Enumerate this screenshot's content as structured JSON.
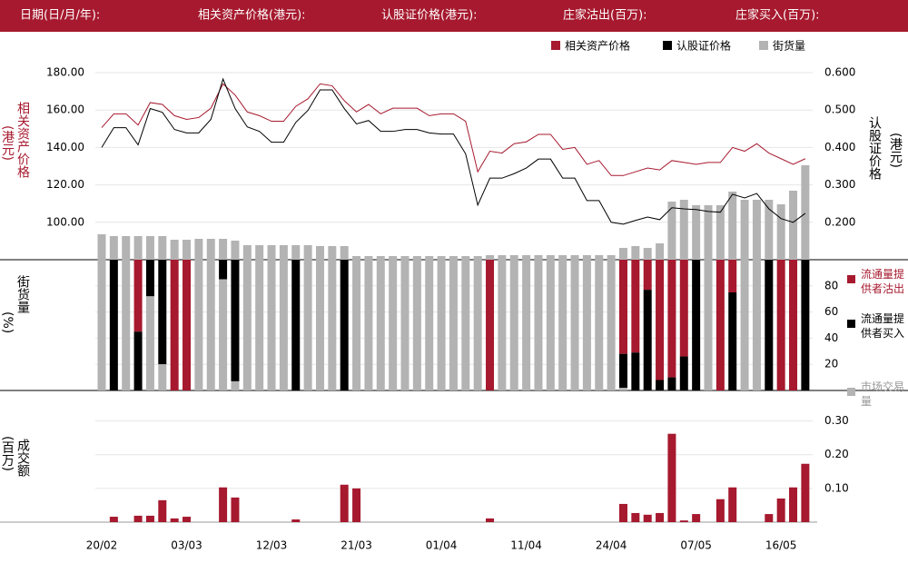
{
  "header": {
    "labels": [
      "日期(日/月/年):",
      "相关资产价格(港元):",
      "认股证价格(港元):",
      "庄家沽出(百万):",
      "庄家买入(百万):"
    ]
  },
  "chart_data": [
    {
      "type": "line",
      "ylabel": "相关资产价格",
      "ylabel_unit": "(港元)",
      "y2label": "认股证价格",
      "y2label_unit": "(港元)",
      "ylim": [
        80,
        180
      ],
      "yticks": [
        {
          "value": 100,
          "label": "100.00"
        },
        {
          "value": 120,
          "label": "120.00"
        },
        {
          "value": 140,
          "label": "140.00"
        },
        {
          "value": 160,
          "label": "160.00"
        },
        {
          "value": 180,
          "label": "180.00"
        }
      ],
      "y2lim": [
        0.1,
        0.6
      ],
      "y2ticks": [
        {
          "value": 0.2,
          "label": "0.200"
        },
        {
          "value": 0.3,
          "label": "0.300"
        },
        {
          "value": 0.4,
          "label": "0.400"
        },
        {
          "value": 0.5,
          "label": "0.500"
        },
        {
          "value": 0.6,
          "label": "0.600"
        }
      ],
      "y3lim": [
        0,
        206
      ],
      "grid": true,
      "series": [
        {
          "name": "相关资产价格",
          "color": "#a6192e",
          "values": [
            150.6,
            158,
            158,
            152,
            164,
            163,
            157,
            155,
            156,
            161,
            174,
            168,
            159,
            157,
            154,
            154,
            162,
            166,
            174,
            173,
            165,
            159,
            163,
            158,
            161,
            161,
            161,
            157,
            158,
            158,
            154,
            127,
            138,
            137,
            142,
            143,
            147,
            147,
            139,
            140,
            131,
            133,
            125,
            125,
            127,
            129,
            128,
            133,
            132,
            131,
            132,
            132,
            140,
            138,
            142,
            137,
            134,
            131,
            134
          ]
        },
        {
          "name": "认股证价格",
          "color": "#000000",
          "axis": "y2",
          "values": [
            0.4,
            0.453,
            0.453,
            0.407,
            0.504,
            0.494,
            0.448,
            0.439,
            0.439,
            0.475,
            0.583,
            0.504,
            0.455,
            0.443,
            0.414,
            0.414,
            0.467,
            0.499,
            0.554,
            0.554,
            0.504,
            0.463,
            0.472,
            0.443,
            0.443,
            0.448,
            0.448,
            0.439,
            0.436,
            0.436,
            0.383,
            0.246,
            0.318,
            0.318,
            0.33,
            0.345,
            0.369,
            0.369,
            0.318,
            0.318,
            0.258,
            0.258,
            0.2,
            0.195,
            0.205,
            0.214,
            0.207,
            0.239,
            0.236,
            0.234,
            0.229,
            0.227,
            0.275,
            0.265,
            0.277,
            0.236,
            0.21,
            0.2,
            0.224
          ]
        },
        {
          "name": "街货量",
          "color": "#b3b3b3",
          "axis": "y3",
          "values": [
            28,
            26,
            26,
            26,
            26,
            26,
            22,
            22,
            23,
            23,
            23,
            21,
            16,
            16,
            16,
            16,
            16,
            16,
            15,
            15,
            15,
            4,
            4,
            4,
            4,
            4,
            4,
            4,
            4,
            4,
            4,
            4,
            5,
            5,
            5,
            5,
            5,
            5,
            5,
            5,
            5,
            5,
            5,
            13,
            15,
            13,
            18,
            64,
            66,
            60,
            60,
            60,
            75,
            66,
            66,
            66,
            61,
            76,
            104
          ]
        }
      ]
    },
    {
      "type": "stacked_bar",
      "ylabel": "街货量",
      "ylabel_unit": "(%)",
      "ylim": [
        0,
        100
      ],
      "yticks": [
        20,
        40,
        60,
        80
      ],
      "grid": true,
      "series": [
        {
          "name": "流通量提供者沽出",
          "color": "#a6192e",
          "values": [
            0,
            0,
            0,
            55,
            0,
            0,
            100,
            100,
            0,
            0,
            0,
            0,
            0,
            0,
            0,
            0,
            0,
            0,
            0,
            0,
            0,
            0,
            0,
            0,
            0,
            0,
            0,
            0,
            0,
            0,
            0,
            0,
            100,
            0,
            0,
            0,
            0,
            0,
            0,
            0,
            0,
            0,
            0,
            72,
            71,
            23,
            92,
            90,
            74,
            0,
            0,
            100,
            25,
            0,
            0,
            0,
            100,
            100,
            0
          ]
        },
        {
          "name": "流通量提供者买入",
          "color": "#000000",
          "values": [
            0,
            100,
            0,
            45,
            28,
            80,
            0,
            0,
            0,
            0,
            15,
            93,
            0,
            0,
            0,
            0,
            100,
            0,
            0,
            0,
            100,
            0,
            0,
            0,
            0,
            0,
            0,
            0,
            0,
            0,
            0,
            0,
            0,
            0,
            0,
            0,
            0,
            0,
            0,
            0,
            0,
            0,
            0,
            26,
            29,
            77,
            8,
            10,
            26,
            100,
            0,
            0,
            75,
            0,
            0,
            100,
            0,
            0,
            100
          ]
        },
        {
          "name": "市场交易量",
          "color": "#b3b3b3",
          "values": [
            100,
            0,
            100,
            0,
            72,
            20,
            0,
            0,
            100,
            100,
            85,
            7,
            100,
            100,
            100,
            100,
            0,
            100,
            100,
            100,
            0,
            100,
            100,
            100,
            100,
            100,
            100,
            100,
            100,
            100,
            100,
            100,
            0,
            100,
            100,
            100,
            100,
            100,
            100,
            100,
            100,
            100,
            100,
            2,
            0,
            0,
            0,
            0,
            0,
            0,
            100,
            0,
            0,
            100,
            100,
            0,
            0,
            0,
            0
          ]
        }
      ]
    },
    {
      "type": "bar",
      "ylabel": "成交额",
      "ylabel_unit": "(百万)",
      "ylim": [
        0,
        0.35
      ],
      "yticks": [
        {
          "value": 0.1,
          "label": "0.10"
        },
        {
          "value": 0.2,
          "label": "0.20"
        },
        {
          "value": 0.3,
          "label": "0.30"
        }
      ],
      "grid": true,
      "color": "#a6192e",
      "categories": [
        "20/02",
        null,
        null,
        null,
        null,
        null,
        null,
        "03/03",
        null,
        null,
        null,
        null,
        null,
        null,
        "12/03",
        null,
        null,
        null,
        null,
        null,
        null,
        "21/03",
        null,
        null,
        null,
        null,
        null,
        null,
        "01/04",
        null,
        null,
        null,
        null,
        null,
        null,
        "11/04",
        null,
        null,
        null,
        null,
        null,
        null,
        "24/04",
        null,
        null,
        null,
        null,
        null,
        null,
        "07/05",
        null,
        null,
        null,
        null,
        null,
        null,
        "16/05",
        null,
        null
      ],
      "values": [
        0,
        0.016,
        0,
        0.019,
        0.019,
        0.065,
        0.011,
        0.016,
        0,
        0,
        0.103,
        0.073,
        0,
        0,
        0,
        0,
        0.008,
        0,
        0,
        0,
        0.111,
        0.1,
        0,
        0,
        0,
        0,
        0,
        0,
        0,
        0,
        0,
        0,
        0.011,
        0,
        0,
        0,
        0,
        0,
        0,
        0,
        0,
        0,
        0,
        0.054,
        0.027,
        0.022,
        0.027,
        0.262,
        0.005,
        0.024,
        0,
        0.068,
        0.103,
        0,
        0,
        0.024,
        0.07,
        0.103,
        0.173
      ]
    }
  ]
}
